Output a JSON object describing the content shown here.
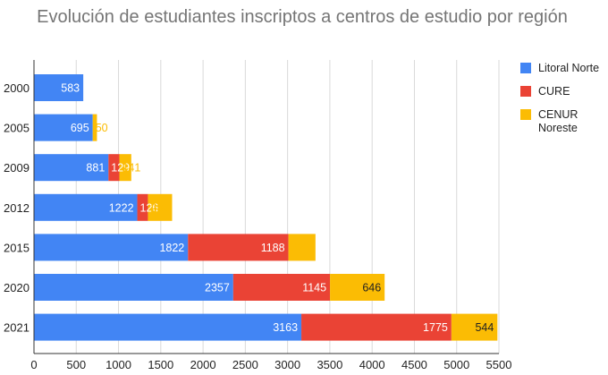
{
  "chart_data": {
    "type": "bar",
    "orientation": "horizontal",
    "stacked": true,
    "title": "Evolución de estudiantes inscriptos a centros de estudio por región",
    "xlabel": "",
    "ylabel": "",
    "categories": [
      "2000",
      "2005",
      "2009",
      "2012",
      "2015",
      "2020",
      "2021"
    ],
    "series": [
      {
        "name": "Litoral Norte",
        "color": "#4285f4",
        "label_color": "#ffffff",
        "values": [
          583,
          695,
          881,
          1222,
          1822,
          2357,
          3163
        ]
      },
      {
        "name": "CURE",
        "color": "#ea4335",
        "label_color": "#ffffff",
        "values": [
          0,
          0,
          129,
          126,
          1188,
          1145,
          1775
        ]
      },
      {
        "name": "CENUR Noreste",
        "color": "#fbbc04",
        "label_color": "#222222",
        "values": [
          0,
          50,
          141,
          286,
          320,
          646,
          544
        ]
      }
    ],
    "data_labels": [
      [
        "583",
        "",
        ""
      ],
      [
        "695",
        "",
        "50"
      ],
      [
        "881",
        "129",
        "141"
      ],
      [
        "1222",
        "126",
        "286"
      ],
      [
        "1822",
        "1188",
        "320"
      ],
      [
        "2357",
        "1145",
        "646"
      ],
      [
        "3163",
        "1775",
        "544"
      ]
    ],
    "xlim": [
      0,
      5500
    ],
    "xticks": [
      "0",
      "500",
      "1000",
      "1500",
      "2000",
      "2500",
      "3000",
      "3500",
      "4000",
      "4500",
      "5000",
      "5500"
    ],
    "grid": true,
    "legend_position": "right",
    "legend": [
      "Litoral Norte",
      "CURE",
      "CENUR Noreste"
    ]
  }
}
